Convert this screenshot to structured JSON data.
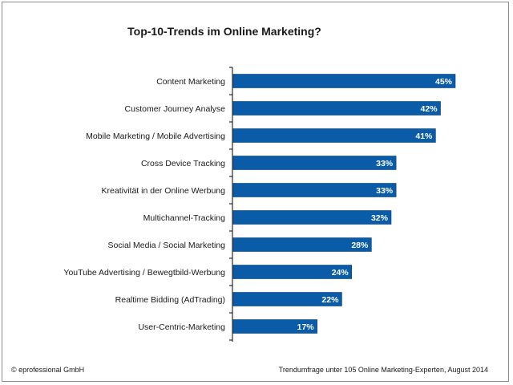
{
  "chart_data": {
    "type": "bar",
    "orientation": "horizontal",
    "title": "Top-10-Trends im Online Marketing?",
    "categories": [
      "Content Marketing",
      "Customer Journey Analyse",
      "Mobile Marketing / Mobile Advertising",
      "Cross Device Tracking",
      "Kreativität in der Online Werbung",
      "Multichannel-Tracking",
      "Social Media / Social Marketing",
      "YouTube Advertising / Bewegtbild-Werbung",
      "Realtime Bidding (AdTrading)",
      "User-Centric-Marketing"
    ],
    "values": [
      45,
      42,
      41,
      33,
      33,
      32,
      28,
      24,
      22,
      17
    ],
    "value_labels": [
      "45%",
      "42%",
      "41%",
      "33%",
      "33%",
      "32%",
      "28%",
      "24%",
      "22%",
      "17%"
    ],
    "unit": "%",
    "xlim": [
      0,
      50
    ],
    "grid": false,
    "bar_color": "#0a5ca8"
  },
  "footer": {
    "copyright": "© eprofessional GmbH",
    "source": "Trendumfrage  unter 105 Online Marketing-Experten,  August 2014"
  }
}
